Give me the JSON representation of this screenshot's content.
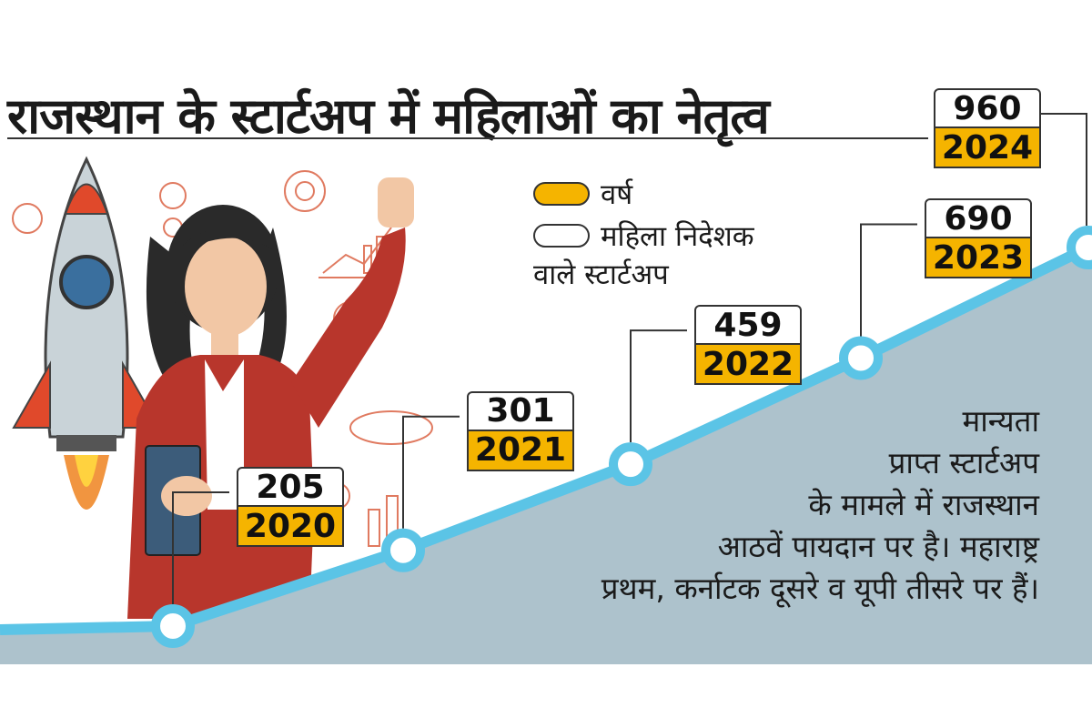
{
  "header": {
    "title": "राजस्थान के स्टार्टअप में महिलाओं का नेतृत्व"
  },
  "legend": {
    "year_label": "वर्ष",
    "count_label_line1": "महिला निदेशक",
    "count_label_line2": "वाले स्टार्टअप"
  },
  "note": {
    "lines": [
      "मान्यता",
      "प्राप्त स्टार्टअप",
      "के मामले में राजस्थान",
      "आठवें पायदान पर है। महाराष्ट्र",
      "प्रथम, कर्नाटक दूसरे व यूपी तीसरे पर हैं।"
    ]
  },
  "colors": {
    "line": "#5bc4e6",
    "area": "#adc2cc",
    "year_box": "#f5b400"
  },
  "chart_data": {
    "type": "area",
    "x": [
      "2020",
      "2021",
      "2022",
      "2023",
      "2024"
    ],
    "series": [
      {
        "name": "महिला निदेशक वाले स्टार्टअप",
        "values": [
          205,
          301,
          459,
          690,
          960
        ]
      }
    ],
    "title": "राजस्थान के स्टार्टअप में महिलाओं का नेतृत्व",
    "legend_position": "top-right"
  }
}
